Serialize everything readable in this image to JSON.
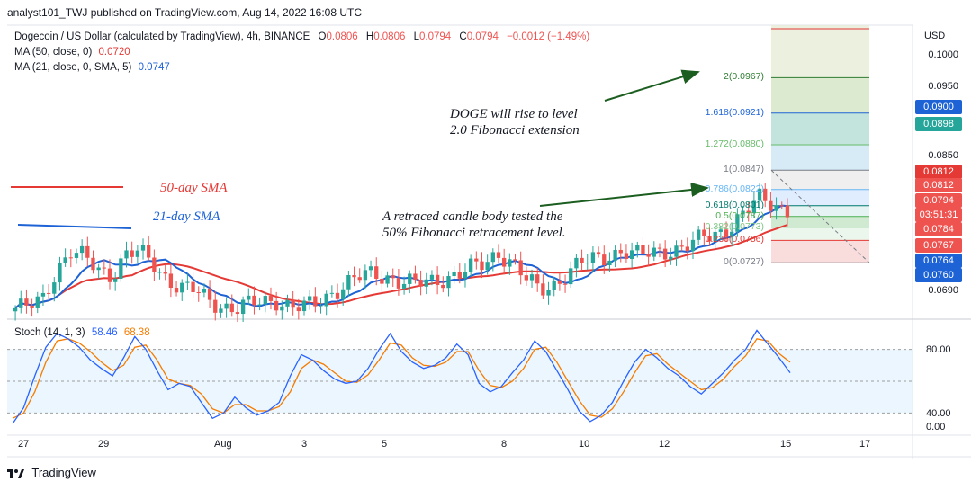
{
  "header": {
    "published": "analyst101_TWJ published on TradingView.com, Aug 14, 2022 16:08 UTC"
  },
  "legend": {
    "symbol": "Dogecoin / US Dollar (calculated by TradingView), 4h, BINANCE",
    "o_label": "O",
    "o": "0.0806",
    "h_label": "H",
    "h": "0.0806",
    "l_label": "L",
    "l": "0.0794",
    "c_label": "C",
    "c": "0.0794",
    "change": "−0.0012 (−1.49%)",
    "ma50_label": "MA (50, close, 0)",
    "ma50_value": "0.0720",
    "ma21_label": "MA (21, close, 0, SMA, 5)",
    "ma21_value": "0.0747",
    "stoch_label": "Stoch (14, 1, 3)",
    "stoch_k": "58.46",
    "stoch_d": "68.38"
  },
  "annotations": {
    "sma50": "50-day SMA",
    "sma21": "21-day SMA",
    "rise_note_line1": "DOGE will rise to level",
    "rise_note_line2": "2.0 Fibonacci extension",
    "retrace_note_line1": "A retraced candle body tested the",
    "retrace_note_line2": "50% Fibonacci retracement level."
  },
  "fib_labels": [
    {
      "text": "2(0.0967)",
      "color": "#2e7d32"
    },
    {
      "text": "1.618(0.0921)",
      "color": "#1e63d6"
    },
    {
      "text": "1.272(0.0880)",
      "color": "#66bb6a"
    },
    {
      "text": "1(0.0847)",
      "color": "#787b86"
    },
    {
      "text": "0.786(0.0822)",
      "color": "#64b5f6"
    },
    {
      "text": "0.618(0.0801)",
      "color": "#00796b"
    },
    {
      "text": "0.5(0.0787)",
      "color": "#4caf50"
    },
    {
      "text": "0.382(0.0773)",
      "color": "#81c784"
    },
    {
      "text": "0.236(0.0756)",
      "color": "#e53935"
    },
    {
      "text": "0(0.0727)",
      "color": "#787b86"
    }
  ],
  "price_axis": {
    "currency": "USD",
    "ticks": [
      "0.1000",
      "0.0950",
      "0.0850",
      "0.0690"
    ],
    "tags": [
      {
        "text": "0.0900",
        "color": "#1e63d6"
      },
      {
        "text": "0.0898",
        "color": "#26a69a"
      },
      {
        "text": "0.0812",
        "color": "#e53935"
      },
      {
        "text": "0.0812",
        "color": "#ef5350"
      },
      {
        "text": "0.0794",
        "color": "#ef5350"
      },
      {
        "text": "03:51:31",
        "color": "#ef5350"
      },
      {
        "text": "0.0784",
        "color": "#ef5350"
      },
      {
        "text": "0.0767",
        "color": "#ef5350"
      },
      {
        "text": "0.0764",
        "color": "#1e63d6"
      },
      {
        "text": "0.0760",
        "color": "#1e63d6"
      }
    ]
  },
  "stoch_axis": {
    "ticks": [
      "80.00",
      "40.00",
      "0.00"
    ]
  },
  "time_axis": {
    "ticks": [
      "27",
      "29",
      "Aug",
      "3",
      "5",
      "8",
      "10",
      "12",
      "15",
      "17"
    ]
  },
  "branding": {
    "name": "TradingView"
  },
  "colors": {
    "up": "#26a69a",
    "down": "#ef5350",
    "ma50": "#e53935",
    "ma21": "#1e63d6",
    "stochK": "#2962ff",
    "stochD": "#f57c00"
  },
  "chart_data": [
    {
      "type": "candlestick",
      "title": "Dogecoin / US Dollar (calculated by TradingView), 4h, BINANCE",
      "ylabel": "USD",
      "ylim": [
        0.0655,
        0.1035
      ],
      "x_ticks": [
        "27",
        "29",
        "Aug",
        "3",
        "5",
        "8",
        "10",
        "12",
        "15",
        "17"
      ],
      "close_path": [
        0.0668,
        0.0668,
        0.068,
        0.072,
        0.0742,
        0.0732,
        0.0718,
        0.0712,
        0.0738,
        0.074,
        0.0725,
        0.0708,
        0.0695,
        0.069,
        0.0678,
        0.0672,
        0.0668,
        0.0672,
        0.0676,
        0.068,
        0.067,
        0.0668,
        0.0675,
        0.069,
        0.07,
        0.0708,
        0.0712,
        0.071,
        0.0703,
        0.0698,
        0.0702,
        0.0708,
        0.0712,
        0.0718,
        0.0725,
        0.0742,
        0.0728,
        0.0705,
        0.0692,
        0.07,
        0.0712,
        0.0725,
        0.0732,
        0.0738,
        0.0742,
        0.0735,
        0.074,
        0.0745,
        0.0743,
        0.0748,
        0.0762,
        0.0768,
        0.0775,
        0.079,
        0.0812,
        0.0806,
        0.0794
      ],
      "series": [
        {
          "name": "MA (50, close, 0)",
          "last": 0.072
        },
        {
          "name": "MA (21, close, 0, SMA, 5)",
          "last": 0.0747
        }
      ],
      "fib_levels": [
        {
          "ratio": "0",
          "price": 0.0727
        },
        {
          "ratio": "0.236",
          "price": 0.0756
        },
        {
          "ratio": "0.382",
          "price": 0.0773
        },
        {
          "ratio": "0.5",
          "price": 0.0787
        },
        {
          "ratio": "0.618",
          "price": 0.0801
        },
        {
          "ratio": "0.786",
          "price": 0.0822
        },
        {
          "ratio": "1",
          "price": 0.0847
        },
        {
          "ratio": "1.272",
          "price": 0.088
        },
        {
          "ratio": "1.618",
          "price": 0.0921
        },
        {
          "ratio": "2",
          "price": 0.0967
        }
      ]
    },
    {
      "type": "line",
      "title": "Stoch (14, 1, 3)",
      "ylim": [
        0,
        100
      ],
      "y_ticks": [
        80,
        40,
        0
      ],
      "series": [
        {
          "name": "%K",
          "last": 58.46,
          "values": [
            10,
            25,
            55,
            82,
            95,
            90,
            82,
            70,
            62,
            55,
            72,
            92,
            80,
            60,
            42,
            48,
            45,
            30,
            15,
            20,
            35,
            25,
            18,
            22,
            30,
            55,
            75,
            70,
            60,
            52,
            48,
            50,
            62,
            80,
            95,
            78,
            68,
            62,
            65,
            72,
            85,
            75,
            48,
            40,
            45,
            58,
            70,
            88,
            78,
            60,
            42,
            22,
            12,
            18,
            30,
            50,
            68,
            80,
            72,
            62,
            55,
            45,
            38,
            48,
            58,
            70,
            80,
            98,
            85,
            72,
            58
          ]
        },
        {
          "name": "%D",
          "last": 68.38,
          "values": [
            15,
            20,
            40,
            68,
            88,
            90,
            86,
            78,
            68,
            60,
            65,
            82,
            84,
            70,
            52,
            48,
            46,
            38,
            24,
            20,
            28,
            28,
            22,
            22,
            26,
            40,
            62,
            70,
            66,
            58,
            50,
            49,
            56,
            70,
            86,
            84,
            72,
            65,
            64,
            68,
            78,
            78,
            60,
            46,
            44,
            50,
            62,
            80,
            82,
            68,
            50,
            32,
            18,
            16,
            24,
            40,
            58,
            74,
            76,
            66,
            58,
            50,
            42,
            44,
            52,
            64,
            74,
            90,
            88,
            76,
            68
          ]
        }
      ]
    }
  ]
}
